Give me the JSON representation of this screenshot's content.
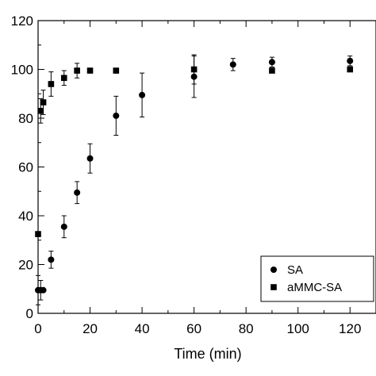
{
  "chart_data": {
    "type": "scatter",
    "xlabel": "Time (min)",
    "ylabel": "",
    "xlim": [
      0,
      130
    ],
    "ylim": [
      0,
      120
    ],
    "xticks": [
      0,
      20,
      40,
      60,
      80,
      100,
      120
    ],
    "yticks": [
      0,
      20,
      40,
      60,
      80,
      100,
      120
    ],
    "grid": false,
    "legend_position": "bottom-right",
    "series": [
      {
        "name": "SA",
        "marker": "circle",
        "color": "#000000",
        "points": [
          {
            "x": 0,
            "y": 9.5,
            "err": 6
          },
          {
            "x": 1,
            "y": 9.5,
            "err": 4
          },
          {
            "x": 2,
            "y": 9.5,
            "err": 0
          },
          {
            "x": 5,
            "y": 22,
            "err": 3.5
          },
          {
            "x": 10,
            "y": 35.5,
            "err": 4.5
          },
          {
            "x": 15,
            "y": 49.5,
            "err": 4.5
          },
          {
            "x": 20,
            "y": 63.5,
            "err": 6
          },
          {
            "x": 30,
            "y": 81,
            "err": 8
          },
          {
            "x": 40,
            "y": 89.5,
            "err": 9
          },
          {
            "x": 60,
            "y": 97,
            "err": 8.5
          },
          {
            "x": 75,
            "y": 102,
            "err": 2.5
          },
          {
            "x": 90,
            "y": 103,
            "err": 2
          },
          {
            "x": 120,
            "y": 103.5,
            "err": 2
          }
        ]
      },
      {
        "name": "aMMC-SA",
        "marker": "square",
        "color": "#000000",
        "points": [
          {
            "x": 0,
            "y": 32.5,
            "err": 1
          },
          {
            "x": 1,
            "y": 83,
            "err": 5
          },
          {
            "x": 2,
            "y": 86.5,
            "err": 5
          },
          {
            "x": 5,
            "y": 94,
            "err": 5
          },
          {
            "x": 10,
            "y": 96.5,
            "err": 3
          },
          {
            "x": 15,
            "y": 99.5,
            "err": 3
          },
          {
            "x": 20,
            "y": 99.5,
            "err": 0
          },
          {
            "x": 30,
            "y": 99.5,
            "err": 0
          },
          {
            "x": 60,
            "y": 100,
            "err": 6
          },
          {
            "x": 90,
            "y": 99.5,
            "err": 0
          },
          {
            "x": 120,
            "y": 100,
            "err": 0
          }
        ]
      }
    ]
  }
}
